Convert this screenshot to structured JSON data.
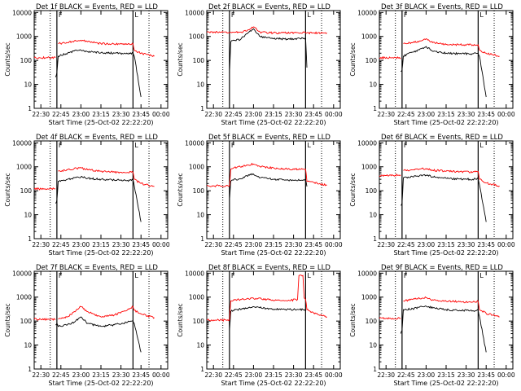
{
  "common": {
    "ylabel": "Counts/sec",
    "xlabel": "Start Time (25-Oct-02 22:22:20)",
    "x_ticks": [
      "22:30",
      "22:45",
      "23:00",
      "23:15",
      "23:30",
      "23:45",
      "00:00"
    ],
    "y_ticks": [
      "1",
      "10",
      "100",
      "1000",
      "10000"
    ],
    "ylim": [
      1,
      12000
    ],
    "y_scale": "log",
    "colors": {
      "events": "#000000",
      "lld": "#ff0000"
    }
  },
  "chart_data": [
    {
      "type": "line",
      "title": "Det 1f BLACK = Events, RED = LLD",
      "markers": [
        "F",
        "L"
      ],
      "x": [
        "22:25",
        "22:35",
        "22:41",
        "22:42",
        "22:43",
        "22:50",
        "22:55",
        "23:00",
        "23:05",
        "23:15",
        "23:25",
        "23:35",
        "23:39",
        "23:40",
        "23:45",
        "23:55"
      ],
      "series": [
        {
          "name": "Events",
          "values": [
            null,
            null,
            20,
            30,
            150,
            200,
            250,
            270,
            230,
            210,
            200,
            190,
            200,
            150,
            3,
            null
          ]
        },
        {
          "name": "LLD",
          "values": [
            130,
            130,
            130,
            null,
            500,
            550,
            650,
            700,
            600,
            500,
            480,
            470,
            500,
            270,
            200,
            150
          ]
        }
      ]
    },
    {
      "type": "line",
      "title": "Det 2f BLACK = Events, RED = LLD",
      "markers": [
        "F",
        "L"
      ],
      "x": [
        "22:25",
        "22:35",
        "22:42",
        "22:43",
        "22:45",
        "22:50",
        "22:55",
        "23:00",
        "23:05",
        "23:15",
        "23:25",
        "23:35",
        "23:39",
        "23:40",
        "23:45",
        "23:55"
      ],
      "series": [
        {
          "name": "Events",
          "values": [
            null,
            null,
            30,
            600,
            700,
            720,
            1300,
            2100,
            1000,
            800,
            780,
            820,
            850,
            50,
            null,
            null
          ]
        },
        {
          "name": "LLD",
          "values": [
            1500,
            1500,
            1500,
            1500,
            1500,
            1500,
            1700,
            2500,
            1500,
            1400,
            1400,
            1400,
            1450,
            1400,
            1400,
            1400
          ]
        }
      ]
    },
    {
      "type": "line",
      "title": "Det 3f BLACK = Events, RED = LLD",
      "markers": [
        "F",
        "L"
      ],
      "x": [
        "22:25",
        "22:35",
        "22:41",
        "22:42",
        "22:43",
        "22:50",
        "22:55",
        "23:00",
        "23:05",
        "23:15",
        "23:25",
        "23:35",
        "23:39",
        "23:40",
        "23:45",
        "23:55"
      ],
      "series": [
        {
          "name": "Events",
          "values": [
            null,
            null,
            35,
            40,
            150,
            220,
            280,
            380,
            240,
            200,
            190,
            190,
            200,
            150,
            3,
            null
          ]
        },
        {
          "name": "LLD",
          "values": [
            130,
            130,
            130,
            null,
            500,
            550,
            650,
            800,
            550,
            460,
            450,
            440,
            450,
            270,
            200,
            150
          ]
        }
      ]
    },
    {
      "type": "line",
      "title": "Det 4f BLACK = Events, RED = LLD",
      "markers": [
        "F",
        "L"
      ],
      "x": [
        "22:25",
        "22:35",
        "22:41",
        "22:42",
        "22:43",
        "22:50",
        "22:55",
        "23:00",
        "23:05",
        "23:15",
        "23:25",
        "23:35",
        "23:39",
        "23:40",
        "23:45",
        "23:55"
      ],
      "series": [
        {
          "name": "Events",
          "values": [
            null,
            null,
            30,
            40,
            250,
            300,
            350,
            380,
            330,
            300,
            280,
            270,
            280,
            160,
            5,
            null
          ]
        },
        {
          "name": "LLD",
          "values": [
            120,
            120,
            120,
            null,
            650,
            750,
            850,
            900,
            750,
            650,
            600,
            580,
            600,
            300,
            200,
            150
          ]
        }
      ]
    },
    {
      "type": "line",
      "title": "Det 5f BLACK = Events, RED = LLD",
      "markers": [
        "F",
        "L"
      ],
      "x": [
        "22:25",
        "22:35",
        "22:42",
        "22:43",
        "22:45",
        "22:50",
        "22:55",
        "23:00",
        "23:05",
        "23:15",
        "23:25",
        "23:35",
        "23:39",
        "23:40",
        "23:45",
        "23:55"
      ],
      "series": [
        {
          "name": "Events",
          "values": [
            null,
            null,
            40,
            250,
            280,
            320,
            420,
            500,
            350,
            300,
            280,
            270,
            280,
            150,
            null,
            null
          ]
        },
        {
          "name": "LLD",
          "values": [
            160,
            160,
            160,
            800,
            900,
            1000,
            1200,
            1300,
            1000,
            900,
            800,
            780,
            800,
            250,
            220,
            170
          ]
        }
      ]
    },
    {
      "type": "line",
      "title": "Det 6f BLACK = Events, RED = LLD",
      "markers": [
        "F",
        "L"
      ],
      "x": [
        "22:25",
        "22:35",
        "22:41",
        "22:42",
        "22:43",
        "22:50",
        "22:55",
        "23:00",
        "23:05",
        "23:15",
        "23:25",
        "23:35",
        "23:39",
        "23:40",
        "23:45",
        "23:55"
      ],
      "series": [
        {
          "name": "Events",
          "values": [
            null,
            null,
            25,
            30,
            350,
            380,
            420,
            450,
            380,
            330,
            310,
            300,
            320,
            180,
            5,
            null
          ]
        },
        {
          "name": "LLD",
          "values": [
            420,
            440,
            460,
            null,
            700,
            750,
            800,
            850,
            720,
            650,
            620,
            600,
            640,
            300,
            210,
            160
          ]
        }
      ]
    },
    {
      "type": "line",
      "title": "Det 7f BLACK = Events, RED = LLD",
      "markers": [
        "F",
        "L"
      ],
      "x": [
        "22:25",
        "22:35",
        "22:41",
        "22:42",
        "22:43",
        "22:50",
        "22:55",
        "23:00",
        "23:05",
        "23:15",
        "23:25",
        "23:35",
        "23:39",
        "23:40",
        "23:45",
        "23:55"
      ],
      "series": [
        {
          "name": "Events",
          "values": [
            null,
            null,
            70,
            80,
            60,
            70,
            90,
            150,
            80,
            60,
            70,
            90,
            100,
            80,
            5,
            null
          ]
        },
        {
          "name": "LLD",
          "values": [
            120,
            120,
            120,
            null,
            120,
            150,
            250,
            400,
            250,
            150,
            180,
            300,
            400,
            280,
            200,
            140
          ]
        }
      ]
    },
    {
      "type": "line",
      "title": "Det 8f BLACK = Events, RED = LLD",
      "markers": [
        "F",
        "L"
      ],
      "x": [
        "22:25",
        "22:35",
        "22:42",
        "22:43",
        "22:45",
        "22:55",
        "23:00",
        "23:10",
        "23:25",
        "23:33",
        "23:34",
        "23:37",
        "23:38",
        "23:39",
        "23:40",
        "23:45",
        "23:55"
      ],
      "series": [
        {
          "name": "Events",
          "values": [
            null,
            null,
            40,
            250,
            280,
            350,
            400,
            330,
            300,
            310,
            300,
            300,
            300,
            300,
            null,
            null,
            null
          ]
        },
        {
          "name": "LLD",
          "values": [
            110,
            110,
            110,
            700,
            750,
            850,
            900,
            800,
            700,
            800,
            8000,
            8000,
            900,
            800,
            300,
            220,
            150
          ]
        }
      ]
    },
    {
      "type": "line",
      "title": "Det 9f BLACK = Events, RED = LLD",
      "markers": [
        "F",
        "L"
      ],
      "x": [
        "22:25",
        "22:35",
        "22:41",
        "22:42",
        "22:43",
        "22:50",
        "22:55",
        "23:00",
        "23:05",
        "23:15",
        "23:25",
        "23:35",
        "23:39",
        "23:40",
        "23:45",
        "23:55"
      ],
      "series": [
        {
          "name": "Events",
          "values": [
            null,
            null,
            30,
            40,
            300,
            330,
            380,
            420,
            350,
            300,
            280,
            270,
            280,
            160,
            5,
            null
          ]
        },
        {
          "name": "LLD",
          "values": [
            130,
            130,
            130,
            null,
            700,
            800,
            900,
            950,
            780,
            680,
            640,
            620,
            660,
            300,
            210,
            150
          ]
        }
      ]
    }
  ]
}
